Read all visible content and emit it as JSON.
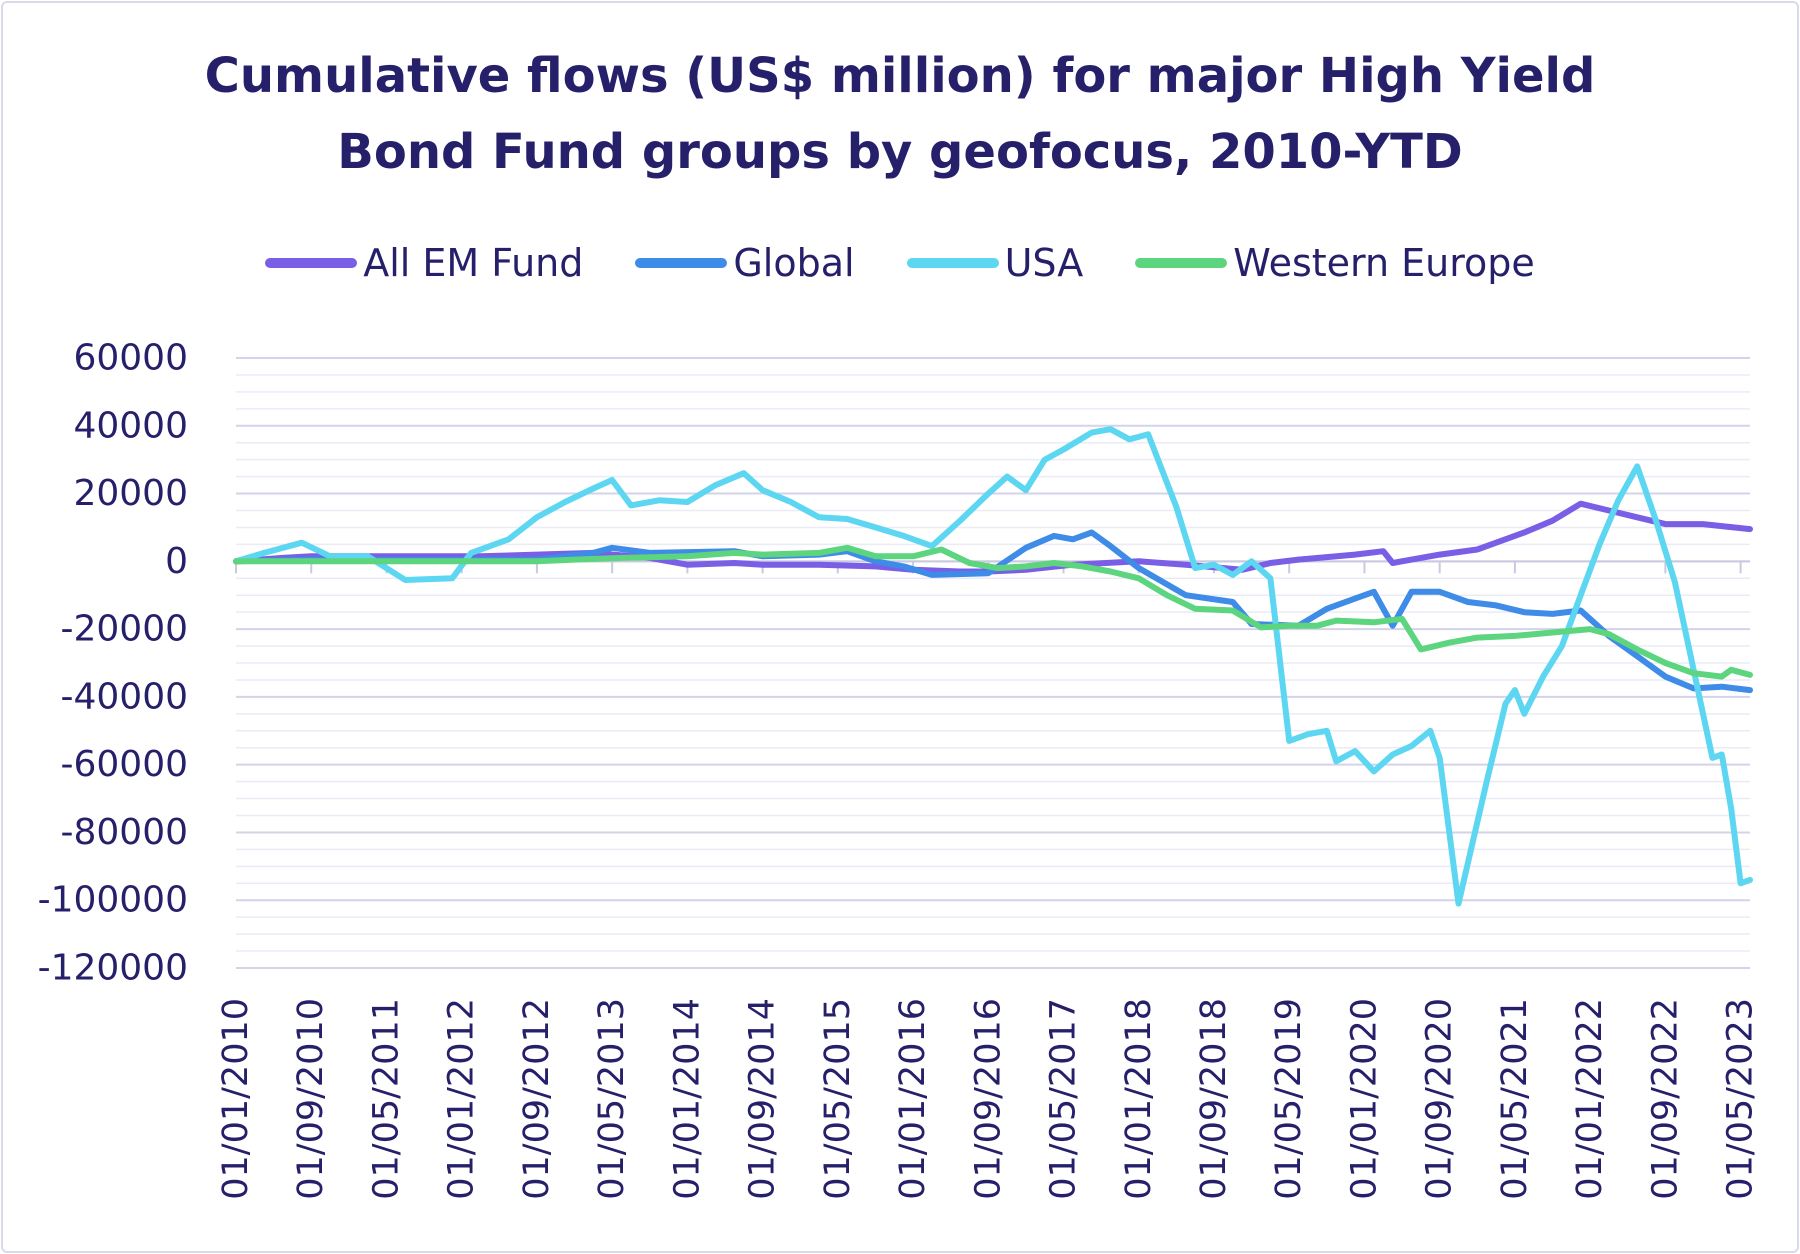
{
  "colors": {
    "text": "#26206b",
    "grid_major": "#d3d3ea",
    "grid_minor": "#ebebf6",
    "axis": "#c9c9e0"
  },
  "chart_data": {
    "type": "line",
    "title": [
      "Cumulative flows (US$ million) for major High Yield",
      "Bond Fund groups by geofocus, 2010-YTD"
    ],
    "xlabel": "",
    "ylabel": "",
    "ylim": [
      -120000,
      60000
    ],
    "yticks": [
      60000,
      40000,
      20000,
      0,
      -20000,
      -40000,
      -60000,
      -80000,
      -100000,
      -120000
    ],
    "ytick_labels": [
      "60000",
      "40000",
      "20000",
      "0",
      "-20000",
      "-40000",
      "-60000",
      "-80000",
      "-100000",
      "-120000"
    ],
    "x_range": [
      "2010-01",
      "2023-06"
    ],
    "xtick_labels": [
      "01/01/2010",
      "01/09/2010",
      "01/05/2011",
      "01/01/2012",
      "01/09/2012",
      "01/05/2013",
      "01/01/2014",
      "01/09/2014",
      "01/05/2015",
      "01/01/2016",
      "01/09/2016",
      "01/05/2017",
      "01/01/2018",
      "01/09/2018",
      "01/05/2019",
      "01/01/2020",
      "01/09/2020",
      "01/05/2021",
      "01/01/2022",
      "01/09/2022",
      "01/05/2023"
    ],
    "legend_position": "top",
    "grid": true,
    "series": [
      {
        "name": "All EM Fund",
        "color": "#7a5ee6",
        "points": [
          [
            "2010-01",
            0
          ],
          [
            "2010-06",
            1000
          ],
          [
            "2010-09",
            1500
          ],
          [
            "2011-03",
            1500
          ],
          [
            "2011-09",
            1500
          ],
          [
            "2012-03",
            1500
          ],
          [
            "2012-09",
            2000
          ],
          [
            "2013-03",
            2500
          ],
          [
            "2013-09",
            1000
          ],
          [
            "2014-01",
            -1000
          ],
          [
            "2014-06",
            -500
          ],
          [
            "2014-09",
            -1000
          ],
          [
            "2015-03",
            -1000
          ],
          [
            "2015-09",
            -1500
          ],
          [
            "2016-01",
            -2500
          ],
          [
            "2016-06",
            -3000
          ],
          [
            "2016-09",
            -3000
          ],
          [
            "2017-01",
            -2500
          ],
          [
            "2017-06",
            -1000
          ],
          [
            "2018-01",
            0
          ],
          [
            "2018-06",
            -1000
          ],
          [
            "2018-12",
            -2500
          ],
          [
            "2019-03",
            -500
          ],
          [
            "2019-06",
            500
          ],
          [
            "2019-12",
            2000
          ],
          [
            "2020-03",
            3000
          ],
          [
            "2020-04",
            -500
          ],
          [
            "2020-09",
            2000
          ],
          [
            "2021-01",
            3500
          ],
          [
            "2021-03",
            5500
          ],
          [
            "2021-06",
            8500
          ],
          [
            "2021-09",
            12000
          ],
          [
            "2021-12",
            17000
          ],
          [
            "2022-03",
            15000
          ],
          [
            "2022-06",
            13000
          ],
          [
            "2022-09",
            11000
          ],
          [
            "2023-01",
            11000
          ],
          [
            "2023-06",
            9500
          ]
        ]
      },
      {
        "name": "Global",
        "color": "#3e8be8",
        "points": [
          [
            "2010-01",
            0
          ],
          [
            "2010-09",
            500
          ],
          [
            "2011-09",
            500
          ],
          [
            "2012-09",
            500
          ],
          [
            "2013-03",
            2500
          ],
          [
            "2013-05",
            4000
          ],
          [
            "2013-09",
            2500
          ],
          [
            "2014-06",
            3000
          ],
          [
            "2014-09",
            1500
          ],
          [
            "2015-03",
            2000
          ],
          [
            "2015-06",
            3000
          ],
          [
            "2015-09",
            0
          ],
          [
            "2015-12",
            -1500
          ],
          [
            "2016-03",
            -4000
          ],
          [
            "2016-09",
            -3500
          ],
          [
            "2017-01",
            4000
          ],
          [
            "2017-04",
            7500
          ],
          [
            "2017-06",
            6500
          ],
          [
            "2017-08",
            8500
          ],
          [
            "2017-10",
            4500
          ],
          [
            "2018-01",
            -2000
          ],
          [
            "2018-06",
            -10000
          ],
          [
            "2018-11",
            -12000
          ],
          [
            "2019-01",
            -18500
          ],
          [
            "2019-06",
            -19000
          ],
          [
            "2019-09",
            -14000
          ],
          [
            "2019-12",
            -11000
          ],
          [
            "2020-02",
            -9000
          ],
          [
            "2020-04",
            -19000
          ],
          [
            "2020-06",
            -9000
          ],
          [
            "2020-09",
            -9000
          ],
          [
            "2020-12",
            -12000
          ],
          [
            "2021-03",
            -13000
          ],
          [
            "2021-06",
            -15000
          ],
          [
            "2021-09",
            -15500
          ],
          [
            "2021-12",
            -14500
          ],
          [
            "2022-03",
            -22000
          ],
          [
            "2022-06",
            -28000
          ],
          [
            "2022-09",
            -34000
          ],
          [
            "2022-12",
            -37500
          ],
          [
            "2023-03",
            -37000
          ],
          [
            "2023-06",
            -38000
          ]
        ]
      },
      {
        "name": "USA",
        "color": "#5dd6f2",
        "points": [
          [
            "2010-01",
            0
          ],
          [
            "2010-04",
            2500
          ],
          [
            "2010-08",
            5500
          ],
          [
            "2010-11",
            1500
          ],
          [
            "2011-03",
            1500
          ],
          [
            "2011-07",
            -5500
          ],
          [
            "2011-12",
            -5000
          ],
          [
            "2012-02",
            2500
          ],
          [
            "2012-06",
            6500
          ],
          [
            "2012-09",
            13000
          ],
          [
            "2012-12",
            17500
          ],
          [
            "2013-03",
            21500
          ],
          [
            "2013-05",
            24000
          ],
          [
            "2013-07",
            16500
          ],
          [
            "2013-10",
            18000
          ],
          [
            "2014-01",
            17500
          ],
          [
            "2014-04",
            22500
          ],
          [
            "2014-07",
            26000
          ],
          [
            "2014-09",
            21000
          ],
          [
            "2014-12",
            17500
          ],
          [
            "2015-03",
            13000
          ],
          [
            "2015-06",
            12500
          ],
          [
            "2015-09",
            10000
          ],
          [
            "2015-12",
            7500
          ],
          [
            "2016-03",
            4500
          ],
          [
            "2016-06",
            12000
          ],
          [
            "2016-09",
            20000
          ],
          [
            "2016-11",
            25000
          ],
          [
            "2017-01",
            21000
          ],
          [
            "2017-03",
            30000
          ],
          [
            "2017-05",
            33000
          ],
          [
            "2017-08",
            38000
          ],
          [
            "2017-10",
            39000
          ],
          [
            "2017-12",
            36000
          ],
          [
            "2018-02",
            37500
          ],
          [
            "2018-05",
            16000
          ],
          [
            "2018-07",
            -2000
          ],
          [
            "2018-09",
            -1000
          ],
          [
            "2018-11",
            -4000
          ],
          [
            "2019-01",
            0
          ],
          [
            "2019-03",
            -5000
          ],
          [
            "2019-05",
            -53000
          ],
          [
            "2019-07",
            -51000
          ],
          [
            "2019-09",
            -50000
          ],
          [
            "2019-10",
            -59000
          ],
          [
            "2019-12",
            -56000
          ],
          [
            "2020-02",
            -62000
          ],
          [
            "2020-04",
            -57000
          ],
          [
            "2020-06",
            -54500
          ],
          [
            "2020-08",
            -50000
          ],
          [
            "2020-09",
            -58000
          ],
          [
            "2020-11",
            -101000
          ],
          [
            "2021-02",
            -65000
          ],
          [
            "2021-04",
            -42000
          ],
          [
            "2021-05",
            -38000
          ],
          [
            "2021-06",
            -45000
          ],
          [
            "2021-08",
            -34000
          ],
          [
            "2021-10",
            -25000
          ],
          [
            "2021-12",
            -10000
          ],
          [
            "2022-02",
            5000
          ],
          [
            "2022-04",
            18000
          ],
          [
            "2022-06",
            28000
          ],
          [
            "2022-08",
            12000
          ],
          [
            "2022-10",
            -6000
          ],
          [
            "2022-12",
            -32000
          ],
          [
            "2023-02",
            -58000
          ],
          [
            "2023-03",
            -57000
          ],
          [
            "2023-04",
            -73000
          ],
          [
            "2023-05",
            -95000
          ],
          [
            "2023-06",
            -94000
          ]
        ]
      },
      {
        "name": "Western Europe",
        "color": "#5dd47e",
        "points": [
          [
            "2010-01",
            0
          ],
          [
            "2011-01",
            0
          ],
          [
            "2012-01",
            0
          ],
          [
            "2012-09",
            0
          ],
          [
            "2013-01",
            500
          ],
          [
            "2013-06",
            1000
          ],
          [
            "2014-01",
            1500
          ],
          [
            "2014-06",
            2500
          ],
          [
            "2014-09",
            2000
          ],
          [
            "2015-03",
            2500
          ],
          [
            "2015-06",
            4000
          ],
          [
            "2015-09",
            1500
          ],
          [
            "2016-01",
            1500
          ],
          [
            "2016-04",
            3500
          ],
          [
            "2016-07",
            -500
          ],
          [
            "2016-10",
            -2000
          ],
          [
            "2017-01",
            -1500
          ],
          [
            "2017-04",
            -500
          ],
          [
            "2017-07",
            -1500
          ],
          [
            "2017-10",
            -3000
          ],
          [
            "2018-01",
            -5000
          ],
          [
            "2018-04",
            -10000
          ],
          [
            "2018-07",
            -14000
          ],
          [
            "2018-11",
            -14500
          ],
          [
            "2019-02",
            -19500
          ],
          [
            "2019-05",
            -19000
          ],
          [
            "2019-08",
            -19000
          ],
          [
            "2019-10",
            -17500
          ],
          [
            "2020-02",
            -18000
          ],
          [
            "2020-05",
            -17000
          ],
          [
            "2020-07",
            -26000
          ],
          [
            "2020-10",
            -24000
          ],
          [
            "2021-01",
            -22500
          ],
          [
            "2021-05",
            -22000
          ],
          [
            "2021-09",
            -21000
          ],
          [
            "2022-01",
            -20000
          ],
          [
            "2022-03",
            -21500
          ],
          [
            "2022-06",
            -26000
          ],
          [
            "2022-09",
            -30000
          ],
          [
            "2022-12",
            -33000
          ],
          [
            "2023-03",
            -34000
          ],
          [
            "2023-04",
            -32000
          ],
          [
            "2023-06",
            -33500
          ]
        ]
      }
    ]
  }
}
